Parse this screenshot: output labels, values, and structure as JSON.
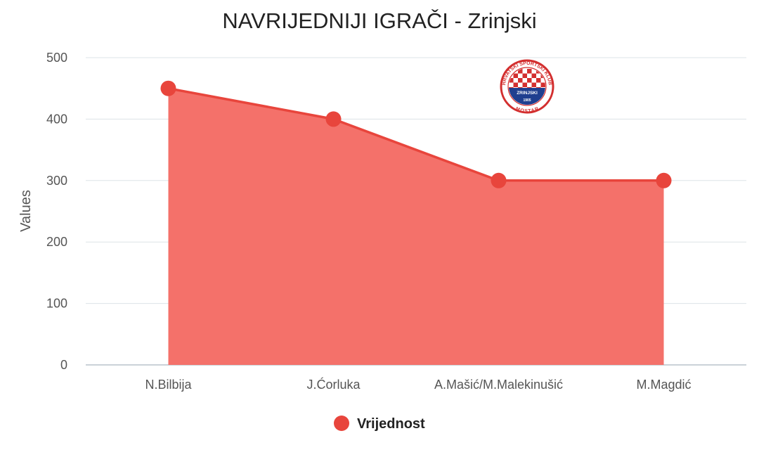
{
  "chart_data": {
    "type": "area",
    "title": "NAVRIJEDNIJI IGRAČI - Zrinjski",
    "xlabel": "",
    "ylabel": "Values",
    "ylim": [
      0,
      500
    ],
    "yticks": [
      0,
      100,
      200,
      300,
      400,
      500
    ],
    "grid": true,
    "legend_position": "bottom",
    "categories": [
      "N.Bilbija",
      "J.Ćorluka",
      "A.Mašić/M.Malekinušić",
      "M.Magdić"
    ],
    "series": [
      {
        "name": "Vrijednost",
        "values": [
          450,
          400,
          300,
          300
        ],
        "color": "#e8453c",
        "fill_color": "#f4716a"
      }
    ]
  },
  "logo": {
    "arc_text": "HRVATSKI ŠPORTSKI KLUB",
    "bottom_text": "MOSTAR",
    "center_text": "ZRINJSKI",
    "year": "1905",
    "color": "#d32f2f",
    "accent": "#1f3f8f"
  }
}
